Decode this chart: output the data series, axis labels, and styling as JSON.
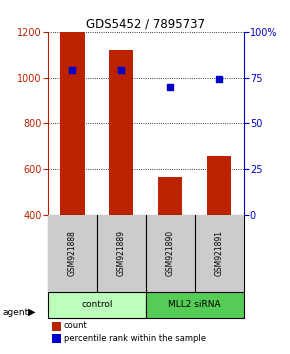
{
  "title": "GDS5452 / 7895737",
  "samples": [
    "GSM921888",
    "GSM921889",
    "GSM921890",
    "GSM921891"
  ],
  "counts": [
    1200,
    1120,
    565,
    655
  ],
  "percentiles": [
    79,
    79,
    70,
    74
  ],
  "ylim_left": [
    400,
    1200
  ],
  "ylim_right": [
    0,
    100
  ],
  "yticks_left": [
    400,
    600,
    800,
    1000,
    1200
  ],
  "yticks_right": [
    0,
    25,
    50,
    75,
    100
  ],
  "bar_color": "#bb2200",
  "dot_color": "#0000cc",
  "plot_bg": "#ffffff",
  "agent_groups": [
    {
      "label": "control",
      "samples": [
        0,
        1
      ],
      "color": "#bbffbb"
    },
    {
      "label": "MLL2 siRNA",
      "samples": [
        2,
        3
      ],
      "color": "#55cc55"
    }
  ],
  "agent_label": "agent",
  "legend_count_label": "count",
  "legend_pct_label": "percentile rank within the sample",
  "bar_width": 0.5,
  "sample_box_color": "#cccccc",
  "sample_box_edge": "#000000"
}
